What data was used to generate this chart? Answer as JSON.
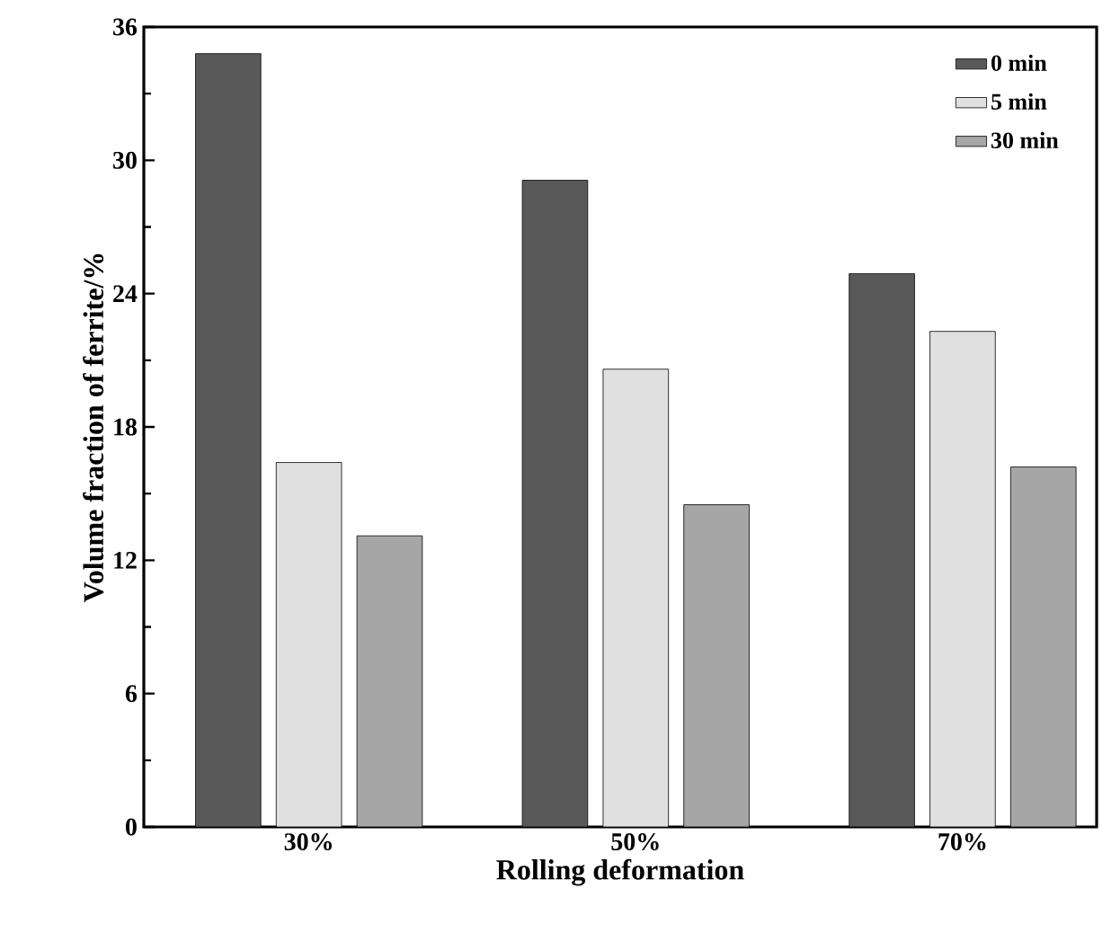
{
  "chart_data": {
    "type": "bar",
    "xlabel": "Rolling deformation",
    "ylabel": "Volume fraction of ferrite/%",
    "categories": [
      "30%",
      "50%",
      "70%"
    ],
    "series": [
      {
        "name": "0 min",
        "color": "#595959",
        "values": [
          34.8,
          29.1,
          24.9
        ]
      },
      {
        "name": "5 min",
        "color": "#e0e0e0",
        "values": [
          16.4,
          20.6,
          22.3
        ]
      },
      {
        "name": "30 min",
        "color": "#a6a6a6",
        "values": [
          13.1,
          14.5,
          16.2
        ]
      }
    ],
    "ylim": [
      0,
      36
    ],
    "yticks": [
      0,
      6,
      12,
      18,
      24,
      30,
      36
    ],
    "grid": false,
    "legend": "top right"
  }
}
